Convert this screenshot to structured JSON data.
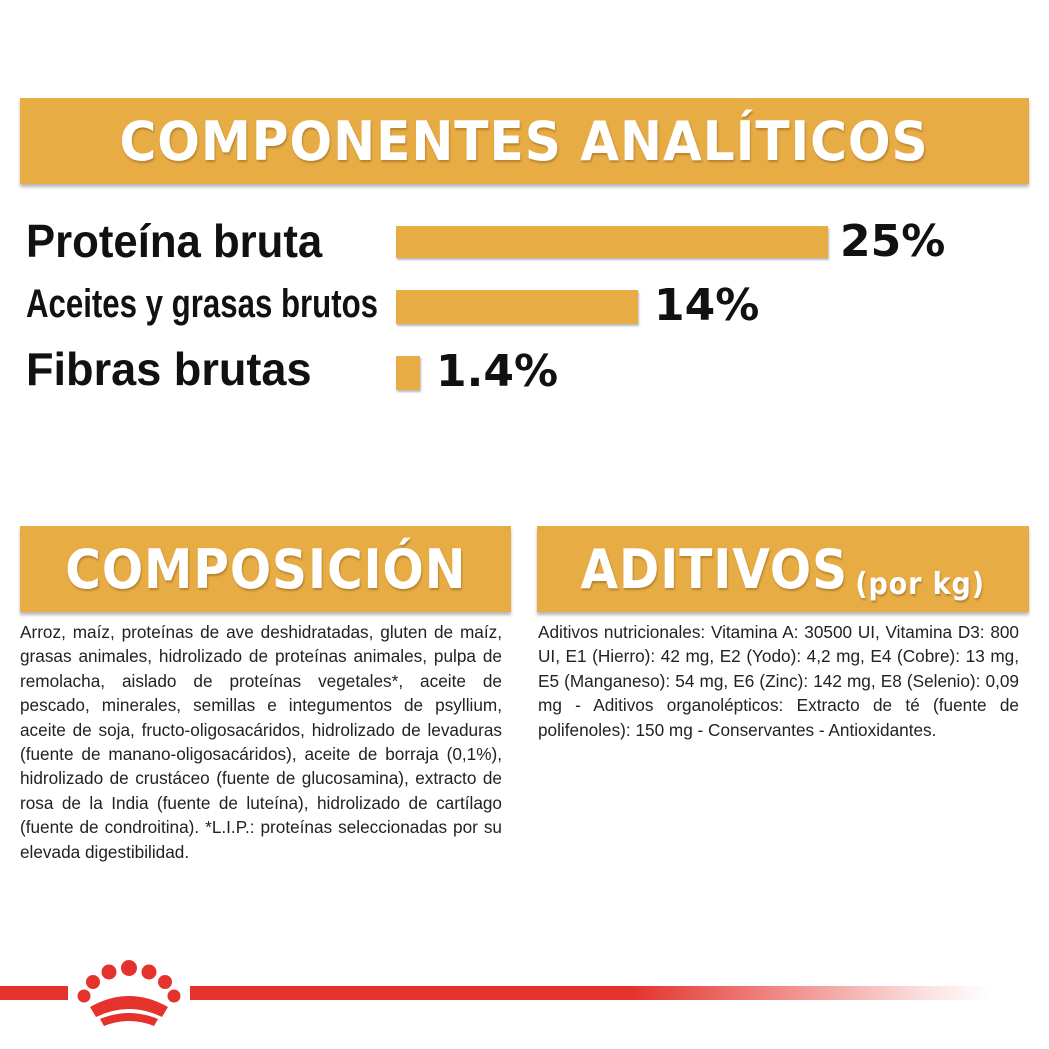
{
  "analytics": {
    "title": "COMPONENTES ANALÍTICOS",
    "rows": [
      {
        "label": "Proteína bruta",
        "value": "25%",
        "percent": 25
      },
      {
        "label": "Aceites y grasas brutos",
        "value": "14%",
        "percent": 14
      },
      {
        "label": "Fibras brutas",
        "value": "1.4%",
        "percent": 1.4
      }
    ]
  },
  "composition": {
    "title": "COMPOSICIÓN",
    "text": "Arroz, maíz, proteínas de ave deshidratadas, gluten de maíz, grasas animales, hidrolizado de proteínas animales, pulpa de remolacha, aislado de proteínas vegetales*, aceite de pescado, minerales, semillas e integumentos de psyllium, aceite de soja, fructo-oligosacáridos, hidrolizado de levaduras (fuente de manano-oligosacáridos), aceite de borraja (0,1%), hidrolizado de crustáceo (fuente de glucosamina), extracto de rosa de la India (fuente de luteína), hidrolizado de cartílago (fuente de condroitina). *L.I.P.: proteínas seleccionadas por su elevada digestibilidad."
  },
  "additives": {
    "title": "ADITIVOS",
    "subtitle": "(por kg)",
    "text": "Aditivos nutricionales: Vitamina A: 30500 UI, Vitamina D3: 800 UI, E1 (Hierro): 42 mg, E2 (Yodo): 4,2 mg, E4 (Cobre): 13 mg, E5 (Manganeso): 54 mg, E6 (Zinc): 142 mg, E8 (Selenio): 0,09 mg - Aditivos organolépticos: Extracto de té (fuente de polifenoles): 150 mg - Conservantes - Antioxidantes."
  },
  "footer": {
    "logo_icon": "crown-icon",
    "accent_color": "#e4322c"
  },
  "colors": {
    "band": "#e8ac45",
    "bar": "#e8ac45",
    "text": "#1a1a1a"
  }
}
